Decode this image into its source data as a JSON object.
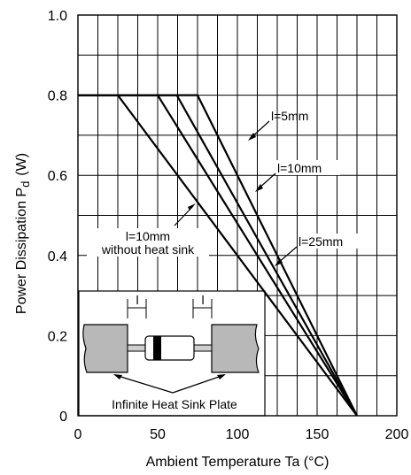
{
  "chart_data": {
    "type": "line",
    "xlabel": "Ambient Temperature Ta (°C)",
    "ylabel": "Power Dissipation  P",
    "ylabel_sub": "d",
    "ylabel_unit": "(W)",
    "xlim": [
      0,
      200
    ],
    "ylim": [
      0,
      1.0
    ],
    "x_ticks": [
      0,
      50,
      100,
      150,
      200
    ],
    "x_tick_labels": [
      "0",
      "50",
      "100",
      "150",
      "200"
    ],
    "y_ticks": [
      0,
      0.2,
      0.4,
      0.6,
      0.8,
      1.0
    ],
    "y_tick_labels": [
      "0",
      "0.2",
      "0.4",
      "0.6",
      "0.8",
      "1.0"
    ],
    "grid": true,
    "series": [
      {
        "name": "l=5mm",
        "x": [
          0,
          75,
          175
        ],
        "y": [
          0.8,
          0.8,
          0
        ]
      },
      {
        "name": "l=10mm",
        "x": [
          0,
          62,
          175
        ],
        "y": [
          0.8,
          0.8,
          0
        ]
      },
      {
        "name": "l=25mm",
        "x": [
          0,
          50,
          175
        ],
        "y": [
          0.8,
          0.8,
          0
        ]
      },
      {
        "name": "l=10mm without heat sink",
        "x": [
          0,
          25,
          175
        ],
        "y": [
          0.8,
          0.8,
          0
        ]
      }
    ],
    "annotations": [
      {
        "label": "l=5mm"
      },
      {
        "label": "l=10mm"
      },
      {
        "label": "l=25mm"
      },
      {
        "line1": "l=10mm",
        "line2": "without heat sink"
      }
    ],
    "inset": {
      "dimension_label_left": "l",
      "dimension_label_right": "l",
      "caption": "Infinite Heat Sink Plate"
    }
  }
}
